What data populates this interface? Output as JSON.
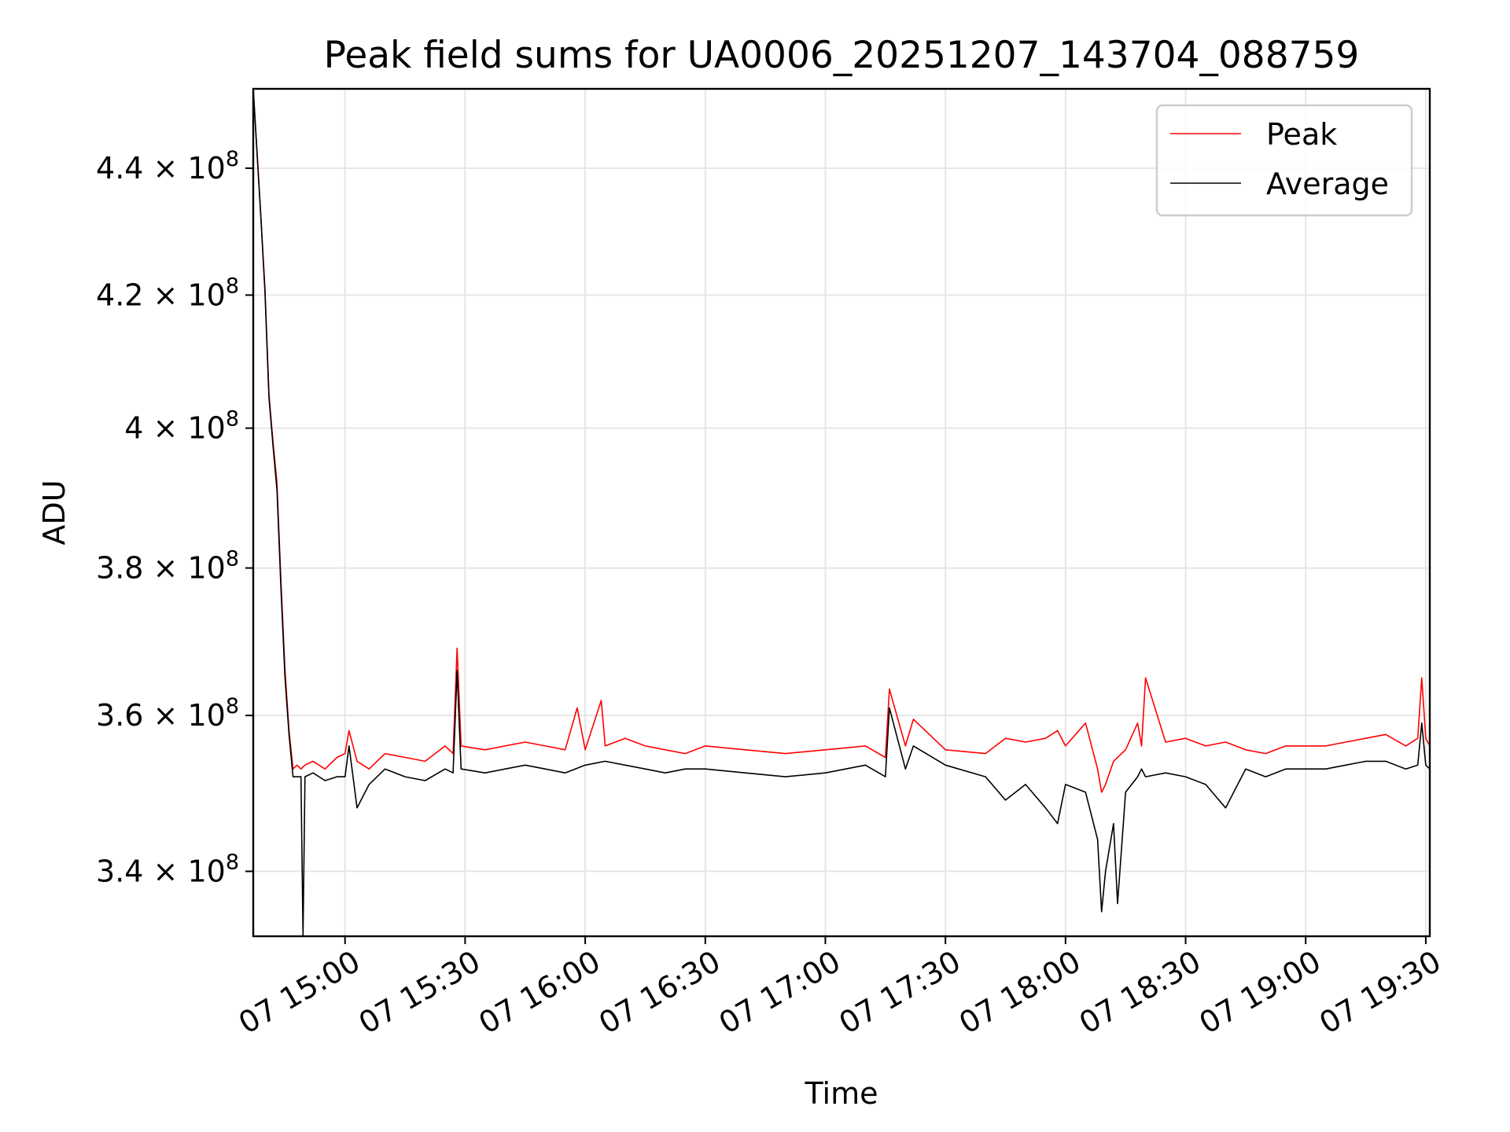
{
  "chart_data": {
    "type": "line",
    "title": "Peak field sums for UA0006_20251207_143704_088759",
    "xlabel": "Time",
    "ylabel": "ADU",
    "y_scale": "log",
    "ylim": [
      332000000,
      453000000
    ],
    "xlim": [
      "2025-12-07 14:37:04",
      "2025-12-07 19:31:00"
    ],
    "x_ticks": [
      {
        "t": "2025-12-07 15:00",
        "label": "07 15:00"
      },
      {
        "t": "2025-12-07 15:30",
        "label": "07 15:30"
      },
      {
        "t": "2025-12-07 16:00",
        "label": "07 16:00"
      },
      {
        "t": "2025-12-07 16:30",
        "label": "07 16:30"
      },
      {
        "t": "2025-12-07 17:00",
        "label": "07 17:00"
      },
      {
        "t": "2025-12-07 17:30",
        "label": "07 17:30"
      },
      {
        "t": "2025-12-07 18:00",
        "label": "07 18:00"
      },
      {
        "t": "2025-12-07 18:30",
        "label": "07 18:30"
      },
      {
        "t": "2025-12-07 19:00",
        "label": "07 19:00"
      },
      {
        "t": "2025-12-07 19:30",
        "label": "07 19:30"
      }
    ],
    "y_ticks": [
      {
        "value": 340000000,
        "mantissa": "3.4",
        "exp": "8"
      },
      {
        "value": 360000000,
        "mantissa": "3.6",
        "exp": "8"
      },
      {
        "value": 380000000,
        "mantissa": "3.8",
        "exp": "8"
      },
      {
        "value": 400000000,
        "mantissa": "4",
        "exp": "8"
      },
      {
        "value": 420000000,
        "mantissa": "4.2",
        "exp": "8"
      },
      {
        "value": 440000000,
        "mantissa": "4.4",
        "exp": "8"
      }
    ],
    "tick_base": "10",
    "grid": true,
    "legend_position": "top-right",
    "series": [
      {
        "name": "Peak",
        "color": "#ff0000",
        "x": [
          "2025-12-07 14:37:04",
          "2025-12-07 14:39",
          "2025-12-07 14:40",
          "2025-12-07 14:41",
          "2025-12-07 14:42",
          "2025-12-07 14:43",
          "2025-12-07 14:44",
          "2025-12-07 14:45",
          "2025-12-07 14:46",
          "2025-12-07 14:47",
          "2025-12-07 14:48",
          "2025-12-07 14:49",
          "2025-12-07 14:50",
          "2025-12-07 14:52",
          "2025-12-07 14:55",
          "2025-12-07 14:58",
          "2025-12-07 15:00",
          "2025-12-07 15:01",
          "2025-12-07 15:03",
          "2025-12-07 15:06",
          "2025-12-07 15:10",
          "2025-12-07 15:15",
          "2025-12-07 15:20",
          "2025-12-07 15:25",
          "2025-12-07 15:27",
          "2025-12-07 15:28",
          "2025-12-07 15:29",
          "2025-12-07 15:35",
          "2025-12-07 15:40",
          "2025-12-07 15:45",
          "2025-12-07 15:50",
          "2025-12-07 15:55",
          "2025-12-07 15:58",
          "2025-12-07 16:00",
          "2025-12-07 16:04",
          "2025-12-07 16:05",
          "2025-12-07 16:10",
          "2025-12-07 16:15",
          "2025-12-07 16:20",
          "2025-12-07 16:25",
          "2025-12-07 16:30",
          "2025-12-07 16:40",
          "2025-12-07 16:50",
          "2025-12-07 17:00",
          "2025-12-07 17:10",
          "2025-12-07 17:15",
          "2025-12-07 17:16",
          "2025-12-07 17:20",
          "2025-12-07 17:22",
          "2025-12-07 17:30",
          "2025-12-07 17:40",
          "2025-12-07 17:45",
          "2025-12-07 17:50",
          "2025-12-07 17:55",
          "2025-12-07 17:58",
          "2025-12-07 18:00",
          "2025-12-07 18:05",
          "2025-12-07 18:08",
          "2025-12-07 18:09",
          "2025-12-07 18:10",
          "2025-12-07 18:12",
          "2025-12-07 18:15",
          "2025-12-07 18:18",
          "2025-12-07 18:19",
          "2025-12-07 18:20",
          "2025-12-07 18:25",
          "2025-12-07 18:30",
          "2025-12-07 18:35",
          "2025-12-07 18:40",
          "2025-12-07 18:45",
          "2025-12-07 18:50",
          "2025-12-07 18:55",
          "2025-12-07 19:00",
          "2025-12-07 19:05",
          "2025-12-07 19:10",
          "2025-12-07 19:15",
          "2025-12-07 19:20",
          "2025-12-07 19:25",
          "2025-12-07 19:28",
          "2025-12-07 19:29",
          "2025-12-07 19:30",
          "2025-12-07 19:31"
        ],
        "values": [
          453000000,
          432000000,
          421000000,
          405000000,
          398000000,
          392000000,
          378000000,
          366000000,
          358000000,
          353000000,
          353500000,
          353000000,
          353500000,
          354000000,
          353000000,
          354500000,
          355000000,
          358000000,
          354000000,
          353000000,
          355000000,
          354500000,
          354000000,
          356000000,
          355000000,
          369000000,
          356000000,
          355500000,
          356000000,
          356500000,
          356000000,
          355500000,
          361000000,
          355500000,
          362000000,
          356000000,
          357000000,
          356000000,
          355500000,
          355000000,
          356000000,
          355500000,
          355000000,
          355500000,
          356000000,
          354500000,
          363500000,
          356000000,
          359500000,
          355500000,
          355000000,
          357000000,
          356500000,
          357000000,
          358000000,
          356000000,
          359000000,
          353000000,
          350000000,
          351000000,
          354000000,
          355500000,
          359000000,
          356000000,
          365000000,
          356500000,
          357000000,
          356000000,
          356500000,
          355500000,
          355000000,
          356000000,
          356000000,
          356000000,
          356500000,
          357000000,
          357500000,
          356000000,
          357000000,
          365000000,
          357000000,
          356000000
        ]
      },
      {
        "name": "Average",
        "color": "#000000",
        "x": [
          "2025-12-07 14:37:04",
          "2025-12-07 14:39",
          "2025-12-07 14:40",
          "2025-12-07 14:41",
          "2025-12-07 14:42",
          "2025-12-07 14:43",
          "2025-12-07 14:44",
          "2025-12-07 14:45",
          "2025-12-07 14:46",
          "2025-12-07 14:47",
          "2025-12-07 14:48",
          "2025-12-07 14:49",
          "2025-12-07 14:49:30",
          "2025-12-07 14:50",
          "2025-12-07 14:52",
          "2025-12-07 14:55",
          "2025-12-07 14:58",
          "2025-12-07 15:00",
          "2025-12-07 15:01",
          "2025-12-07 15:03",
          "2025-12-07 15:06",
          "2025-12-07 15:10",
          "2025-12-07 15:15",
          "2025-12-07 15:20",
          "2025-12-07 15:25",
          "2025-12-07 15:27",
          "2025-12-07 15:28",
          "2025-12-07 15:29",
          "2025-12-07 15:35",
          "2025-12-07 15:40",
          "2025-12-07 15:45",
          "2025-12-07 15:50",
          "2025-12-07 15:55",
          "2025-12-07 16:00",
          "2025-12-07 16:05",
          "2025-12-07 16:10",
          "2025-12-07 16:15",
          "2025-12-07 16:20",
          "2025-12-07 16:25",
          "2025-12-07 16:30",
          "2025-12-07 16:40",
          "2025-12-07 16:50",
          "2025-12-07 17:00",
          "2025-12-07 17:10",
          "2025-12-07 17:15",
          "2025-12-07 17:16",
          "2025-12-07 17:20",
          "2025-12-07 17:22",
          "2025-12-07 17:30",
          "2025-12-07 17:40",
          "2025-12-07 17:45",
          "2025-12-07 17:50",
          "2025-12-07 17:55",
          "2025-12-07 17:58",
          "2025-12-07 18:00",
          "2025-12-07 18:05",
          "2025-12-07 18:08",
          "2025-12-07 18:09",
          "2025-12-07 18:10",
          "2025-12-07 18:12",
          "2025-12-07 18:13",
          "2025-12-07 18:15",
          "2025-12-07 18:18",
          "2025-12-07 18:19",
          "2025-12-07 18:20",
          "2025-12-07 18:25",
          "2025-12-07 18:30",
          "2025-12-07 18:35",
          "2025-12-07 18:40",
          "2025-12-07 18:45",
          "2025-12-07 18:50",
          "2025-12-07 18:55",
          "2025-12-07 19:00",
          "2025-12-07 19:05",
          "2025-12-07 19:10",
          "2025-12-07 19:15",
          "2025-12-07 19:20",
          "2025-12-07 19:25",
          "2025-12-07 19:28",
          "2025-12-07 19:29",
          "2025-12-07 19:30",
          "2025-12-07 19:31"
        ],
        "values": [
          453000000,
          432000000,
          420500000,
          404500000,
          397500000,
          391000000,
          377000000,
          365000000,
          357500000,
          352000000,
          352000000,
          352000000,
          332000000,
          352000000,
          352500000,
          351500000,
          352000000,
          352000000,
          356000000,
          348000000,
          351000000,
          353000000,
          352000000,
          351500000,
          353000000,
          352500000,
          366000000,
          353000000,
          352500000,
          353000000,
          353500000,
          353000000,
          352500000,
          353500000,
          354000000,
          353500000,
          353000000,
          352500000,
          353000000,
          353000000,
          352500000,
          352000000,
          352500000,
          353500000,
          352000000,
          361000000,
          353000000,
          356000000,
          353500000,
          352000000,
          349000000,
          351000000,
          348000000,
          346000000,
          351000000,
          350000000,
          344000000,
          335000000,
          340000000,
          346000000,
          336000000,
          350000000,
          352000000,
          353000000,
          352000000,
          352500000,
          352000000,
          351000000,
          348000000,
          353000000,
          352000000,
          353000000,
          353000000,
          353000000,
          353500000,
          354000000,
          354000000,
          353000000,
          353500000,
          359000000,
          353500000,
          353000000
        ]
      }
    ]
  }
}
